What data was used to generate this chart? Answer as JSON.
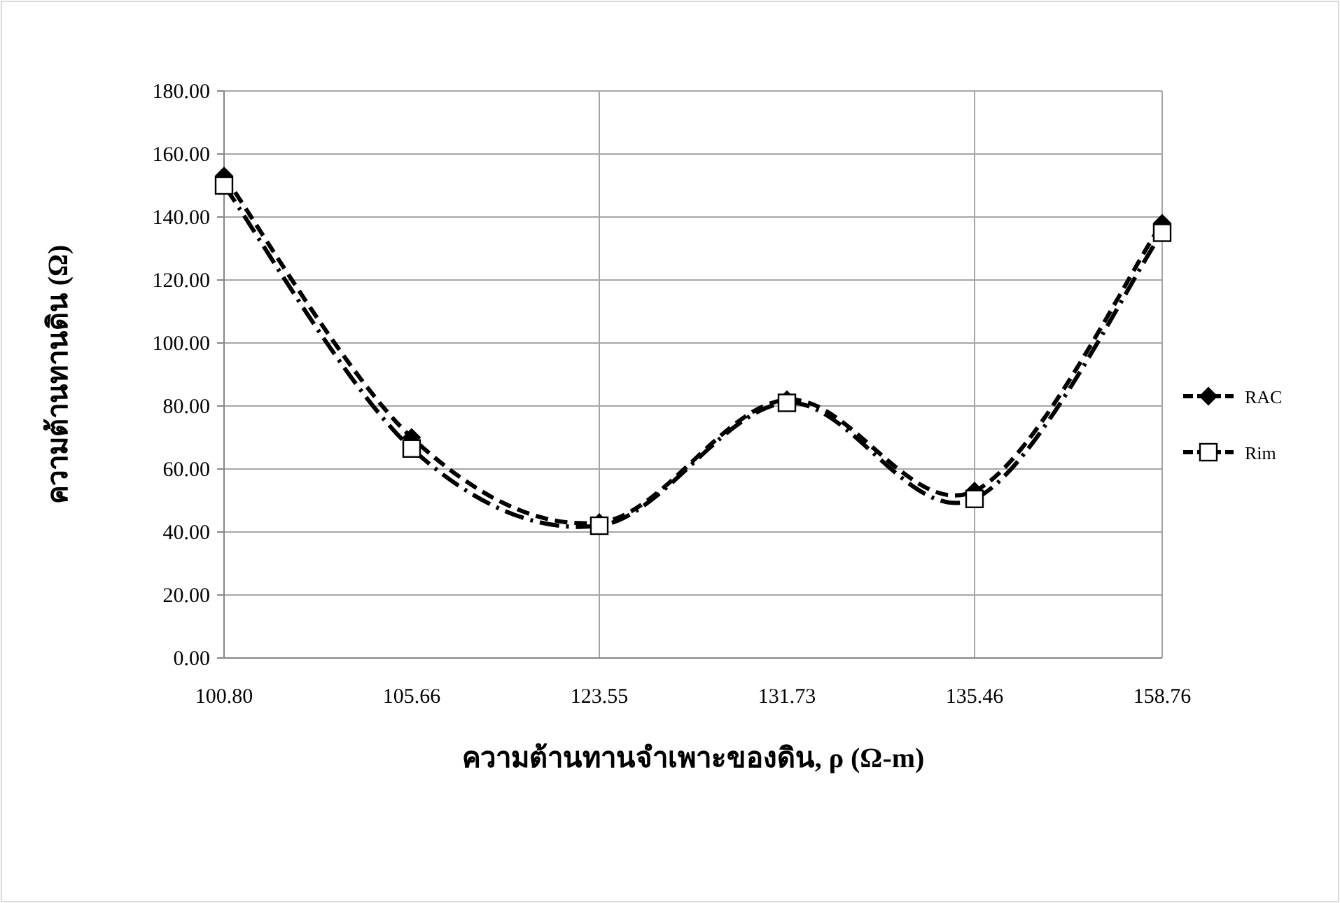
{
  "chart_data": {
    "type": "line",
    "xlabel": "ความต้านทานจำเพาะของดิน, ρ (Ω-m)",
    "ylabel": "ความต้านทานดิน (Ω)",
    "categories": [
      "100.80",
      "105.66",
      "123.55",
      "131.73",
      "135.46",
      "158.76"
    ],
    "series": [
      {
        "name": "RAC",
        "color": "#000000",
        "values": [
          153,
          70,
          43,
          82,
          53,
          138
        ],
        "marker": "diamond",
        "line_style": "dashed"
      },
      {
        "name": "Rim",
        "color": "#000000",
        "values": [
          150,
          66.5,
          42,
          81,
          50.5,
          135
        ],
        "marker": "square",
        "line_style": "dashdot"
      }
    ],
    "ylim": [
      0,
      180
    ],
    "yticks": [
      {
        "value": 0,
        "label": "0.00"
      },
      {
        "value": 20,
        "label": "20.00"
      },
      {
        "value": 40,
        "label": "40.00"
      },
      {
        "value": 60,
        "label": "60.00"
      },
      {
        "value": 80,
        "label": "80.00"
      },
      {
        "value": 100,
        "label": "100.00"
      },
      {
        "value": 120,
        "label": "120.00"
      },
      {
        "value": 140,
        "label": "140.00"
      },
      {
        "value": 160,
        "label": "160.00"
      },
      {
        "value": 180,
        "label": "180.00"
      }
    ],
    "grid": true,
    "legend": "right"
  }
}
